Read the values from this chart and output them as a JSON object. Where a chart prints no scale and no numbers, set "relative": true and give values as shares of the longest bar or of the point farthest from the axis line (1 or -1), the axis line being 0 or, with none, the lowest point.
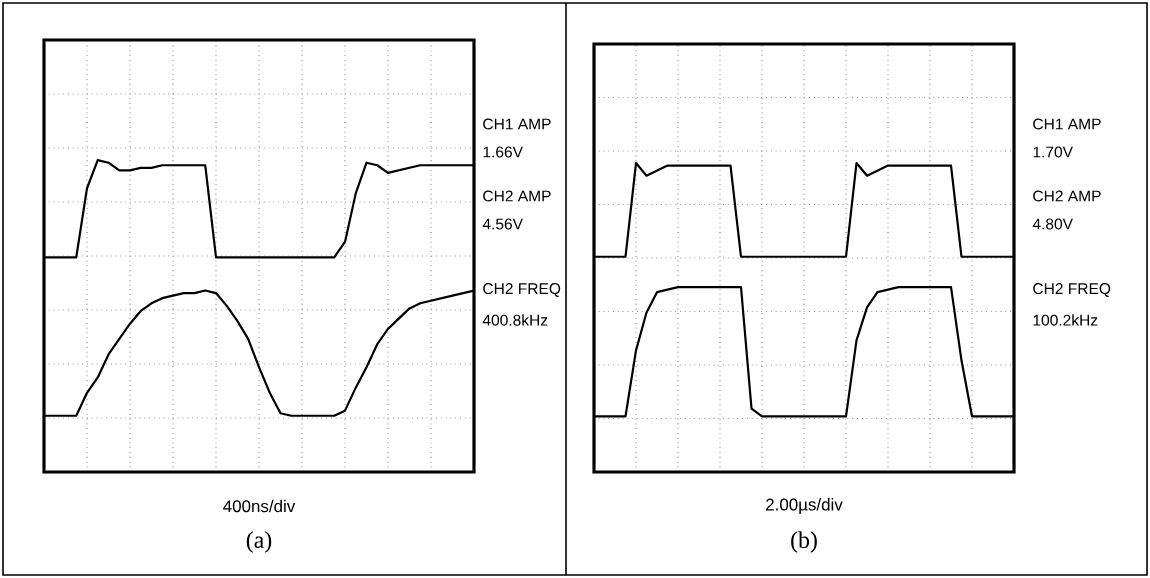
{
  "chart_data": [
    {
      "type": "line",
      "title": "(a)",
      "xlabel": "400ns/div",
      "relative": true,
      "grid": true,
      "marker": "none",
      "line_style": "solid",
      "annotations": [
        "CH1 AMP",
        "1.66V",
        "CH2 AMP",
        "4.56V",
        "CH2 FREQ",
        "400.8kHz"
      ],
      "categories": [
        null,
        null,
        null,
        null,
        null,
        null,
        null,
        null,
        null,
        null,
        null,
        null,
        null,
        null,
        null,
        null,
        null,
        null,
        null,
        null,
        null,
        null,
        null,
        null,
        null,
        null,
        null,
        null,
        null,
        null,
        null,
        null,
        null,
        null,
        null,
        null,
        null,
        null,
        null,
        null,
        null
      ],
      "series": [
        {
          "color": "#000000",
          "values": [
            0.62,
            0.62,
            0.62,
            0.62,
            0.89,
            1.0,
            0.99,
            0.96,
            0.96,
            0.97,
            0.97,
            0.98,
            0.98,
            0.98,
            0.98,
            0.98,
            0.62,
            0.62,
            0.62,
            0.62,
            0.62,
            0.62,
            0.62,
            0.62,
            0.62,
            0.62,
            0.62,
            0.62,
            0.68,
            0.87,
            0.99,
            0.98,
            0.95,
            0.96,
            0.97,
            0.98,
            0.98,
            0.98,
            0.98,
            0.98,
            0.98
          ]
        },
        {
          "color": "#000000",
          "values": [
            0,
            0,
            0,
            0,
            0.09,
            0.15,
            0.24,
            0.3,
            0.36,
            0.41,
            0.44,
            0.46,
            0.47,
            0.48,
            0.48,
            0.49,
            0.48,
            0.43,
            0.37,
            0.3,
            0.19,
            0.09,
            0.01,
            0,
            0,
            0,
            0,
            0,
            0.02,
            0.11,
            0.19,
            0.28,
            0.34,
            0.38,
            0.42,
            0.44,
            0.45,
            0.46,
            0.47,
            0.48,
            0.49
          ]
        }
      ]
    },
    {
      "type": "line",
      "title": "(b)",
      "xlabel": "2.00µs/div",
      "relative": true,
      "grid": true,
      "marker": "none",
      "line_style": "solid",
      "annotations": [
        "CH1 AMP",
        "1.70V",
        "CH2 AMP",
        "4.80V",
        "CH2 FREQ",
        "100.2kHz"
      ],
      "categories": [
        null,
        null,
        null,
        null,
        null,
        null,
        null,
        null,
        null,
        null,
        null,
        null,
        null,
        null,
        null,
        null,
        null,
        null,
        null,
        null,
        null,
        null,
        null,
        null,
        null,
        null,
        null,
        null,
        null,
        null,
        null,
        null,
        null,
        null,
        null,
        null,
        null,
        null,
        null,
        null,
        null
      ],
      "series": [
        {
          "color": "#000000",
          "values": [
            0.63,
            0.63,
            0.63,
            0.63,
            1.0,
            0.95,
            0.97,
            0.99,
            0.99,
            0.99,
            0.99,
            0.99,
            0.99,
            0.99,
            0.63,
            0.63,
            0.63,
            0.63,
            0.63,
            0.63,
            0.63,
            0.63,
            0.63,
            0.63,
            0.63,
            1.0,
            0.95,
            0.97,
            0.99,
            0.99,
            0.99,
            0.99,
            0.99,
            0.99,
            0.99,
            0.63,
            0.63,
            0.63,
            0.63,
            0.63,
            0.63
          ]
        },
        {
          "color": "#000000",
          "values": [
            0,
            0,
            0,
            0,
            0.26,
            0.41,
            0.49,
            0.5,
            0.51,
            0.51,
            0.51,
            0.51,
            0.51,
            0.51,
            0.51,
            0.03,
            0,
            0,
            0,
            0,
            0,
            0,
            0,
            0,
            0,
            0.3,
            0.43,
            0.49,
            0.5,
            0.51,
            0.51,
            0.51,
            0.51,
            0.51,
            0.51,
            0.22,
            0,
            0,
            0,
            0,
            0
          ]
        }
      ]
    }
  ]
}
